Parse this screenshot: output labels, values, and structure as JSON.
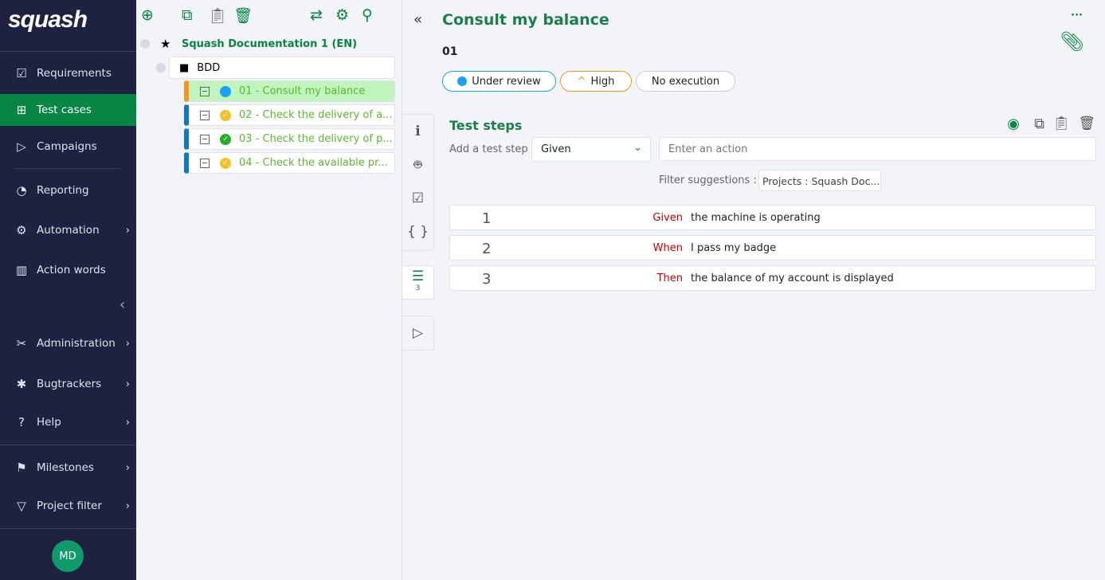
{
  "app": {
    "logo": "squash"
  },
  "sidebar": {
    "items": [
      {
        "label": "Requirements",
        "icon": "checkbox-icon"
      },
      {
        "label": "Test cases",
        "icon": "tree-icon",
        "active": true
      },
      {
        "label": "Campaigns",
        "icon": "play-circle-icon"
      },
      {
        "label": "Reporting",
        "icon": "chart-icon"
      },
      {
        "label": "Automation",
        "icon": "robot-icon"
      },
      {
        "label": "Action words",
        "icon": "library-icon"
      },
      {
        "label": "Administration",
        "icon": "tools-icon"
      },
      {
        "label": "Bugtrackers",
        "icon": "bug-icon"
      },
      {
        "label": "Help",
        "icon": "help-icon"
      },
      {
        "label": "Milestones",
        "icon": "flag-icon"
      },
      {
        "label": "Project filter",
        "icon": "filter-icon"
      }
    ],
    "avatar": "MD"
  },
  "tree": {
    "project": "Squash Documentation 1 (EN)",
    "folder": "BDD",
    "items": [
      {
        "label": "01 - Consult my balance",
        "status_color": "#1aa3f0",
        "selected": true
      },
      {
        "label": "02 - Check the delivery of a...",
        "status_color": "#f2c22b"
      },
      {
        "label": "03 - Check the delivery of p...",
        "status_color": "#22b022"
      },
      {
        "label": "04 - Check the available pr...",
        "status_color": "#f2c22b"
      }
    ]
  },
  "main": {
    "title": "Consult my balance",
    "reference": "01",
    "status": "Under review",
    "importance": "High",
    "execution": "No execution",
    "steps_tab_count": "3",
    "section_title": "Test steps",
    "add_label": "Add a test step",
    "keyword_select": "Given",
    "action_placeholder": "Enter an action",
    "filter_label": "Filter suggestions :",
    "filter_value": "Projects : Squash Doc...",
    "steps": [
      {
        "num": "1",
        "keyword": "Given",
        "action": "the machine is operating"
      },
      {
        "num": "2",
        "keyword": "When",
        "action": "I pass my badge"
      },
      {
        "num": "3",
        "keyword": "Then",
        "action": "the balance of my account is displayed"
      }
    ]
  },
  "colors": {
    "brand": "#078543",
    "sidebar": "#1e2240",
    "keyword": "#c40000"
  }
}
